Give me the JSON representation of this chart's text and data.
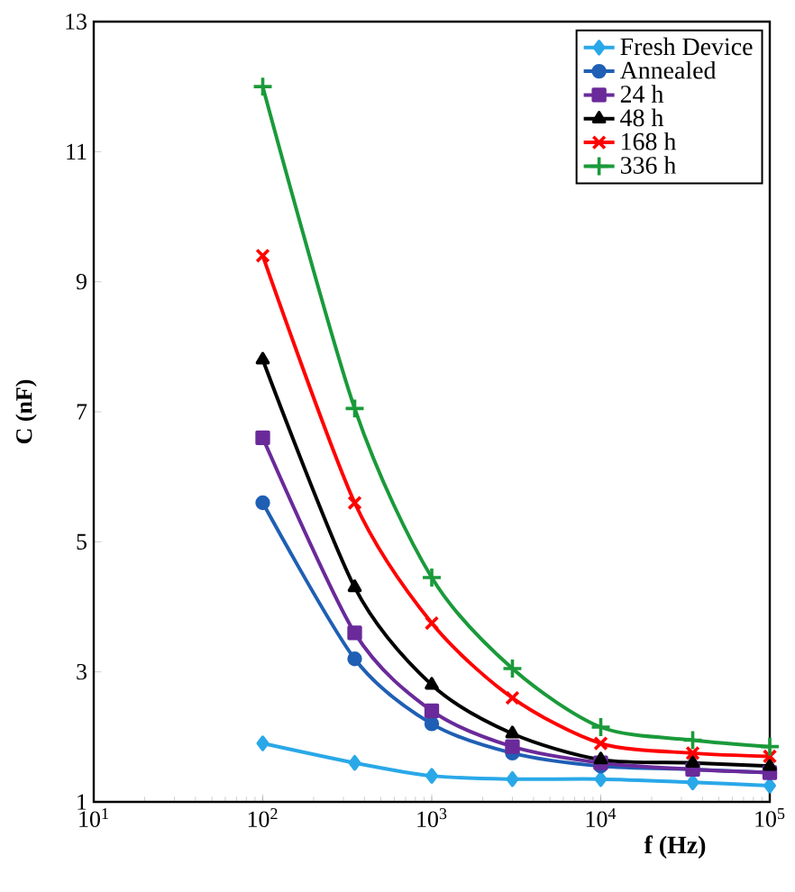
{
  "chart_data": {
    "type": "line",
    "xlabel": "f (Hz)",
    "ylabel": "C (nF)",
    "log": "x",
    "x": [
      100,
      350,
      1000,
      3000,
      10000,
      35000,
      100000
    ],
    "xlim": [
      10,
      100000
    ],
    "xticks": [
      {
        "value": 10,
        "label": "10$^{1}$"
      },
      {
        "value": 100,
        "label": "10$^{2}$"
      },
      {
        "value": 1000,
        "label": "10$^{3}$"
      },
      {
        "value": 10000,
        "label": "10$^{4}$"
      },
      {
        "value": 100000,
        "label": "10$^{5}$"
      }
    ],
    "ylim": [
      1,
      13
    ],
    "yticks": [
      1,
      3,
      5,
      7,
      9,
      11,
      13
    ],
    "grid": false,
    "legend": "top right",
    "line_style": "solid",
    "series": [
      {
        "name": "Fresh Device",
        "color": "#29a8e8",
        "marker": "diamond",
        "values": [
          1.9,
          1.6,
          1.4,
          1.35,
          1.35,
          1.3,
          1.25
        ]
      },
      {
        "name": "Annealed",
        "color": "#1f5fb4",
        "marker": "circle",
        "values": [
          5.6,
          3.2,
          2.2,
          1.75,
          1.55,
          1.5,
          1.45
        ]
      },
      {
        "name": "24 h",
        "color": "#6a2a9a",
        "marker": "square",
        "values": [
          6.6,
          3.6,
          2.4,
          1.85,
          1.6,
          1.5,
          1.45
        ]
      },
      {
        "name": "48 h",
        "color": "#000000",
        "marker": "triangle",
        "values": [
          7.8,
          4.3,
          2.8,
          2.05,
          1.65,
          1.6,
          1.55
        ]
      },
      {
        "name": "168 h",
        "color": "#ff0000",
        "marker": "cross",
        "values": [
          9.4,
          5.6,
          3.75,
          2.6,
          1.9,
          1.75,
          1.7
        ]
      },
      {
        "name": "336 h",
        "color": "#1a9a3a",
        "marker": "plus",
        "values": [
          12.0,
          7.05,
          4.45,
          3.05,
          2.15,
          1.95,
          1.85
        ]
      }
    ]
  }
}
